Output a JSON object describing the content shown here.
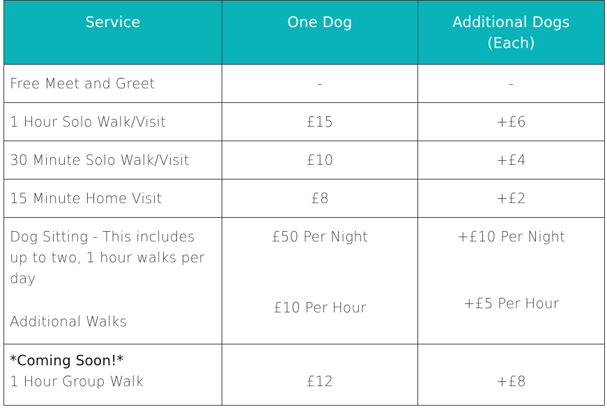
{
  "headers": {
    "service": "Service",
    "one_dog": "One Dog",
    "additional_line1": "Additional Dogs",
    "additional_line2": "(Each)"
  },
  "rows": [
    {
      "service": "Free Meet and Greet",
      "one_dog": "-",
      "additional": "-"
    },
    {
      "service": "1 Hour Solo Walk/Visit",
      "one_dog": "£15",
      "additional": "+£6"
    },
    {
      "service": "30 Minute Solo Walk/Visit",
      "one_dog": "£10",
      "additional": "+£4"
    },
    {
      "service": "15 Minute Home Visit",
      "one_dog": "£8",
      "additional": "+£2"
    }
  ],
  "sitting": {
    "service": "Dog Sitting - This includes up to two, 1 hour walks per day",
    "one_dog": "£50 Per Night",
    "additional": "+£10 Per Night",
    "extra_service": "Additional Walks",
    "extra_one_dog": "£10 Per Hour",
    "extra_additional": "+£5 Per Hour"
  },
  "group": {
    "note": "*Coming Soon!*",
    "service": "1 Hour Group Walk",
    "one_dog": "£12",
    "additional": "+£8"
  },
  "colors": {
    "header_bg": "#0ab3b7",
    "header_text": "#ffffff",
    "border": "#3a3a3a"
  }
}
